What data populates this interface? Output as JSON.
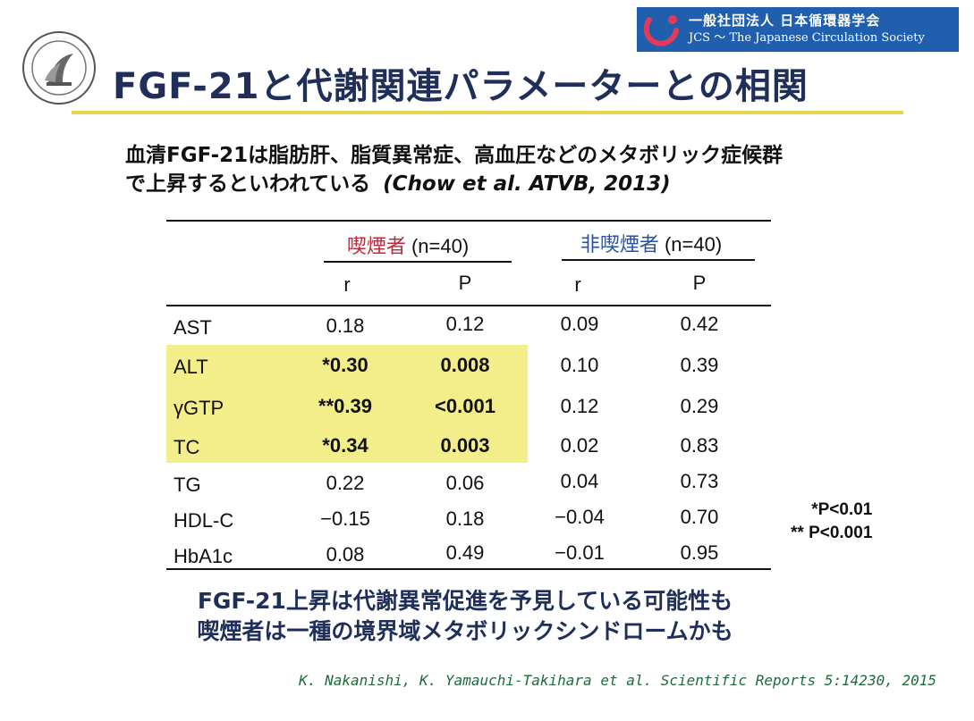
{
  "logo": {
    "org_ja": "一般社団法人 日本循環器学会",
    "org_en": "JCS ～ The Japanese Circulation Society"
  },
  "title": "FGF-21と代謝関連パラメーターとの相関",
  "subtitle": {
    "line1": "血清FGF-21は脂肪肝、脂質異常症、高血圧などのメタボリック症候群",
    "line2": "で上昇するといわれている",
    "cite": "(Chow et al. ATVB, 2013)"
  },
  "table": {
    "group_smoker": "喫煙者",
    "group_smoker_n": "(n=40)",
    "group_non": "非喫煙者",
    "group_non_n": "(n=40)",
    "col_r": "r",
    "col_p": "P",
    "rows": [
      {
        "name": "AST",
        "r1": "0.18",
        "p1": "0.12",
        "r2": "0.09",
        "p2": "0.42"
      },
      {
        "name": "ALT",
        "r1": "*0.30",
        "p1": "0.008",
        "r2": "0.10",
        "p2": "0.39"
      },
      {
        "name": "γGTP",
        "r1": "**0.39",
        "p1": "<0.001",
        "r2": "0.12",
        "p2": "0.29"
      },
      {
        "name": "TC",
        "r1": "*0.34",
        "p1": "0.003",
        "r2": "0.02",
        "p2": "0.83"
      },
      {
        "name": "TG",
        "r1": "0.22",
        "p1": "0.06",
        "r2": "0.04",
        "p2": "0.73"
      },
      {
        "name": "HDL-C",
        "r1": "−0.15",
        "p1": "0.18",
        "r2": "−0.04",
        "p2": "0.70"
      },
      {
        "name": "HbA1c",
        "r1": "0.08",
        "p1": "0.49",
        "r2": "−0.01",
        "p2": "0.95"
      }
    ]
  },
  "notes": {
    "n1": "*P<0.01",
    "n2": "** P<0.001"
  },
  "conclusion": {
    "line1": "FGF-21上昇は代謝異常促進を予見している可能性も",
    "line2": "喫煙者は一種の境界域メタボリックシンドロームかも"
  },
  "citation": "K. Nakanishi, K. Yamauchi-Takihara et al. Scientific Reports 5:14230, 2015",
  "colors": {
    "title": "#1f2f5a",
    "highlight": "#f3ee8a",
    "smoker": "#c0283b",
    "non_smoker": "#2a4fa8",
    "citation": "#1d6b3a"
  }
}
